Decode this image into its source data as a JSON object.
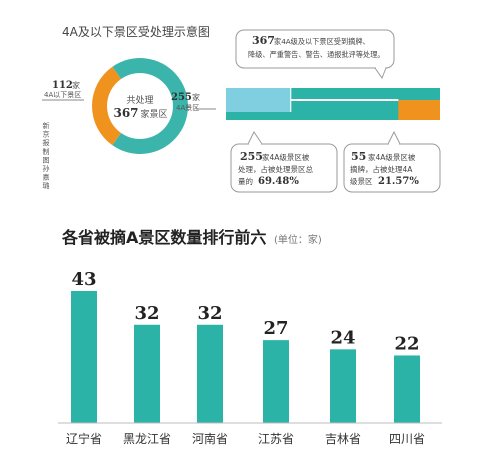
{
  "top_section": {
    "title": "4A及以下景区受处理示意图",
    "donut": {
      "center_line1": "共处理",
      "center_count": "367",
      "center_unit": "家景区",
      "left_count": "112",
      "left_unit": "家",
      "left_sub": "4A以下景区",
      "right_count": "255",
      "right_unit": "家",
      "right_sub": "4A景区",
      "slices": [
        {
          "label": "4A以下景区",
          "value": 112,
          "color": "#f0921e"
        },
        {
          "label": "4A景区",
          "value": 255,
          "color": "#3bb5ac"
        }
      ]
    },
    "credit": "新京报制图 孙嘉璐",
    "callout_top": {
      "count": "367",
      "line1": "家4A级及以下景区受到摘牌、",
      "line2": "降级、严重警告、警告、通报批评等处理。"
    },
    "bar_strip": {
      "total": 367,
      "teal_value": 255,
      "orange_value": 55
    },
    "callout_left": {
      "count": "255",
      "line1": "家4A级景区被",
      "line2": "处理，占被处理景区总",
      "line3": "量的",
      "pct": "69.48%"
    },
    "callout_right": {
      "count": "55",
      "line1": "家4A级景区被",
      "line2": "摘牌，占被处理4A",
      "line3": "级景区",
      "pct": "21.57%"
    }
  },
  "bottom_section": {
    "title": "各省被摘A景区数量排行前六",
    "unit": "(单位：家)"
  },
  "colors": {
    "teal": "#2bb3a8",
    "orange": "#f0921e",
    "light_blue": "#7fcfe0",
    "dark": "#333333"
  },
  "chart_data": {
    "type": "bar",
    "title": "各省被摘A景区数量排行前六",
    "unit": "(单位：家)",
    "categories": [
      "辽宁省",
      "黑龙江省",
      "河南省",
      "江苏省",
      "吉林省",
      "四川省"
    ],
    "values": [
      43,
      32,
      32,
      27,
      24,
      22
    ],
    "ylim": [
      0,
      43
    ],
    "grid": false,
    "bar_color": "#2bb3a8"
  }
}
